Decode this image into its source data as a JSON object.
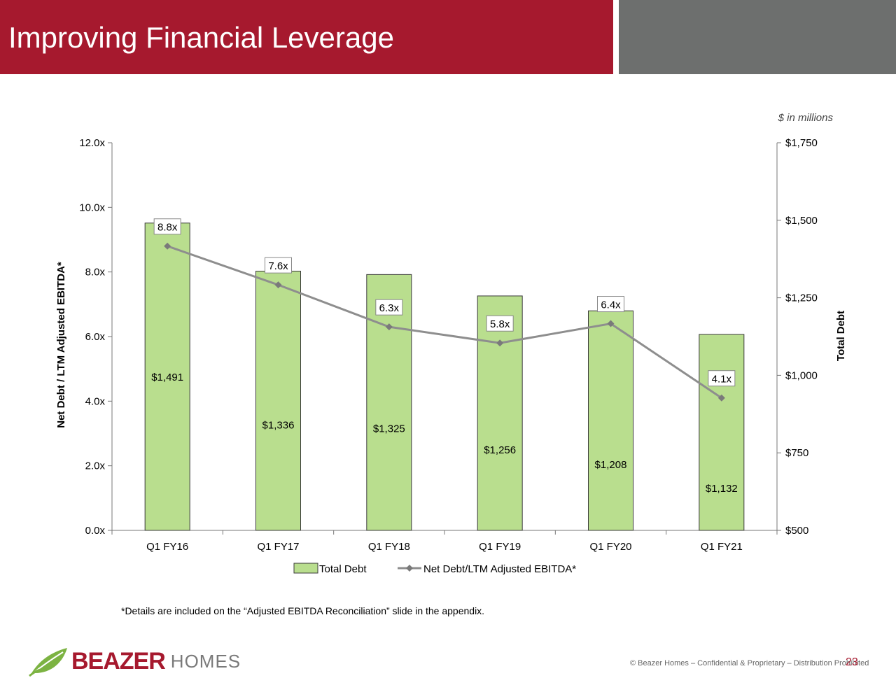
{
  "slide": {
    "title": "Improving Financial Leverage",
    "units_note": "$ in millions",
    "footnote": "*Details are included on the “Adjusted EBITDA Reconciliation” slide in the appendix.",
    "logo_main": "BEAZER",
    "logo_sub": "HOMES",
    "copyright": "© Beazer Homes – Confidential & Proprietary – Distribution Prohibited",
    "page_number": "23",
    "colors": {
      "brand": "#a6192e",
      "header_grey": "#6d6f6e",
      "bar_fill": "#b9de8e",
      "line": "#8e8e8e"
    }
  },
  "chart_data": {
    "type": "bar",
    "categories": [
      "Q1 FY16",
      "Q1 FY17",
      "Q1 FY18",
      "Q1 FY19",
      "Q1 FY20",
      "Q1 FY21"
    ],
    "series": [
      {
        "name": "Total Debt",
        "type": "bar",
        "axis": "right",
        "values": [
          1491,
          1336,
          1325,
          1256,
          1208,
          1132
        ],
        "labels": [
          "$1,491",
          "$1,336",
          "$1,325",
          "$1,256",
          "$1,208",
          "$1,132"
        ]
      },
      {
        "name": "Net Debt/LTM Adjusted EBITDA*",
        "type": "line",
        "axis": "left",
        "values": [
          8.8,
          7.6,
          6.3,
          5.8,
          6.4,
          4.1
        ],
        "labels": [
          "8.8x",
          "7.6x",
          "6.3x",
          "5.8x",
          "6.4x",
          "4.1x"
        ]
      }
    ],
    "y_left": {
      "label": "Net Debt / LTM Adjusted EBITDA*",
      "range": [
        0,
        12
      ],
      "ticks": [
        0,
        2,
        4,
        6,
        8,
        10,
        12
      ],
      "tick_labels": [
        "0.0x",
        "2.0x",
        "4.0x",
        "6.0x",
        "8.0x",
        "10.0x",
        "12.0x"
      ]
    },
    "y_right": {
      "label": "Total Debt",
      "range": [
        500,
        1750
      ],
      "ticks": [
        500,
        750,
        1000,
        1250,
        1500,
        1750
      ],
      "tick_labels": [
        "$500",
        "$750",
        "$1,000",
        "$1,250",
        "$1,500",
        "$1,750"
      ]
    },
    "legend": "bottom",
    "grid": false
  }
}
